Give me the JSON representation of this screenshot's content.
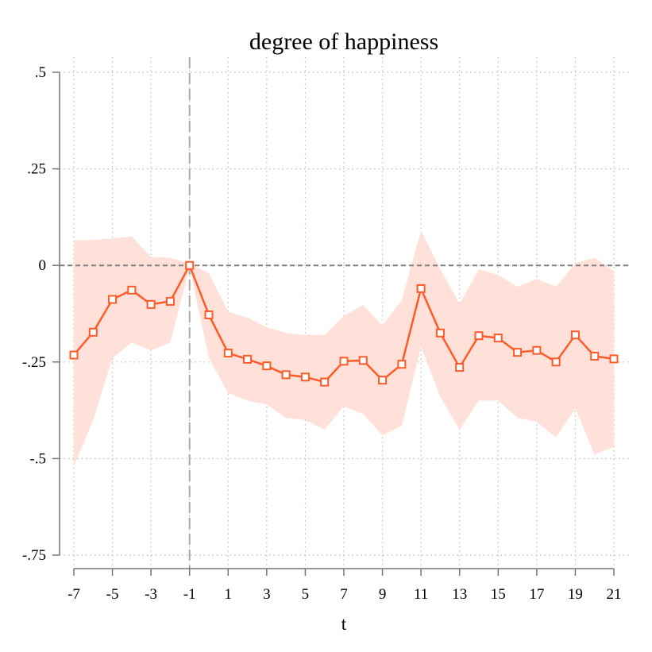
{
  "chart_data": {
    "type": "line",
    "title": "degree of happiness",
    "xlabel": "t",
    "ylabel": "",
    "xlim": [
      -7,
      21
    ],
    "ylim": [
      -0.75,
      0.5
    ],
    "xticks": [
      -7,
      -5,
      -3,
      -1,
      1,
      3,
      5,
      7,
      9,
      11,
      13,
      15,
      17,
      19,
      21
    ],
    "xtick_labels": [
      "-7",
      "-5",
      "-3",
      "-1",
      "1",
      "3",
      "5",
      "7",
      "9",
      "11",
      "13",
      "15",
      "17",
      "19",
      "21"
    ],
    "yticks": [
      0.5,
      0.25,
      0,
      -0.25,
      -0.5,
      -0.75
    ],
    "ytick_labels": [
      ".5",
      ".25",
      "0",
      "-.25",
      "-.5",
      "-.75"
    ],
    "grid": "dotted",
    "reference_lines": {
      "x": -1,
      "y": 0
    },
    "colors": {
      "line": "#ff5a28",
      "band": "#ffe1d9",
      "grid": "#bbbbbb",
      "refline": "#7f7f7f",
      "axis": "#777777"
    },
    "x": [
      -7,
      -6,
      -5,
      -4,
      -3,
      -2,
      -1,
      0,
      1,
      2,
      3,
      4,
      5,
      6,
      7,
      8,
      9,
      10,
      11,
      12,
      13,
      14,
      15,
      16,
      17,
      18,
      19,
      20,
      21
    ],
    "series": [
      {
        "values": [
          -0.232,
          -0.173,
          -0.088,
          -0.064,
          -0.101,
          -0.093,
          0.0,
          -0.128,
          -0.227,
          -0.243,
          -0.26,
          -0.283,
          -0.289,
          -0.302,
          -0.248,
          -0.246,
          -0.297,
          -0.256,
          -0.06,
          -0.175,
          -0.264,
          -0.182,
          -0.188,
          -0.225,
          -0.22,
          -0.25,
          -0.18,
          -0.235,
          -0.242
        ],
        "ci_upper": [
          0.065,
          0.066,
          0.07,
          0.075,
          0.022,
          0.02,
          0.005,
          -0.02,
          -0.12,
          -0.135,
          -0.16,
          -0.175,
          -0.18,
          -0.18,
          -0.13,
          -0.103,
          -0.155,
          -0.09,
          0.09,
          -0.01,
          -0.1,
          -0.01,
          -0.025,
          -0.055,
          -0.035,
          -0.055,
          0.005,
          0.02,
          -0.015
        ],
        "ci_lower": [
          -0.52,
          -0.4,
          -0.24,
          -0.2,
          -0.22,
          -0.2,
          -0.005,
          -0.24,
          -0.33,
          -0.35,
          -0.36,
          -0.395,
          -0.4,
          -0.425,
          -0.365,
          -0.385,
          -0.44,
          -0.415,
          -0.21,
          -0.34,
          -0.425,
          -0.35,
          -0.35,
          -0.395,
          -0.405,
          -0.445,
          -0.37,
          -0.49,
          -0.47
        ]
      }
    ]
  }
}
